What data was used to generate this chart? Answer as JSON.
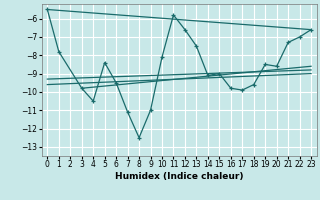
{
  "xlabel": "Humidex (Indice chaleur)",
  "xlim": [
    -0.5,
    23.5
  ],
  "ylim": [
    -13.5,
    -5.2
  ],
  "yticks": [
    -13,
    -12,
    -11,
    -10,
    -9,
    -8,
    -7,
    -6
  ],
  "xticks": [
    0,
    1,
    2,
    3,
    4,
    5,
    6,
    7,
    8,
    9,
    10,
    11,
    12,
    13,
    14,
    15,
    16,
    17,
    18,
    19,
    20,
    21,
    22,
    23
  ],
  "background_color": "#c8e8e8",
  "grid_color": "#ffffff",
  "line_color": "#1a6b6b",
  "main_series_x": [
    0,
    1,
    3,
    4,
    5,
    6,
    7,
    8,
    9,
    10,
    11,
    12,
    13,
    14,
    15,
    16,
    17,
    18,
    19,
    20,
    21,
    22,
    23
  ],
  "main_series_y": [
    -5.5,
    -7.8,
    -9.8,
    -10.5,
    -8.4,
    -9.5,
    -11.1,
    -12.5,
    -11.0,
    -8.1,
    -5.8,
    -6.6,
    -7.5,
    -9.1,
    -9.0,
    -9.8,
    -9.9,
    -9.6,
    -8.5,
    -8.6,
    -7.3,
    -7.0,
    -6.6
  ],
  "trend1_x": [
    0,
    23
  ],
  "trend1_y": [
    -5.5,
    -6.6
  ],
  "trend2_x": [
    3,
    23
  ],
  "trend2_y": [
    -9.8,
    -8.6
  ],
  "trend3_x": [
    0,
    23
  ],
  "trend3_y": [
    -9.6,
    -9.0
  ],
  "trend4_x": [
    0,
    23
  ],
  "trend4_y": [
    -9.3,
    -8.8
  ]
}
